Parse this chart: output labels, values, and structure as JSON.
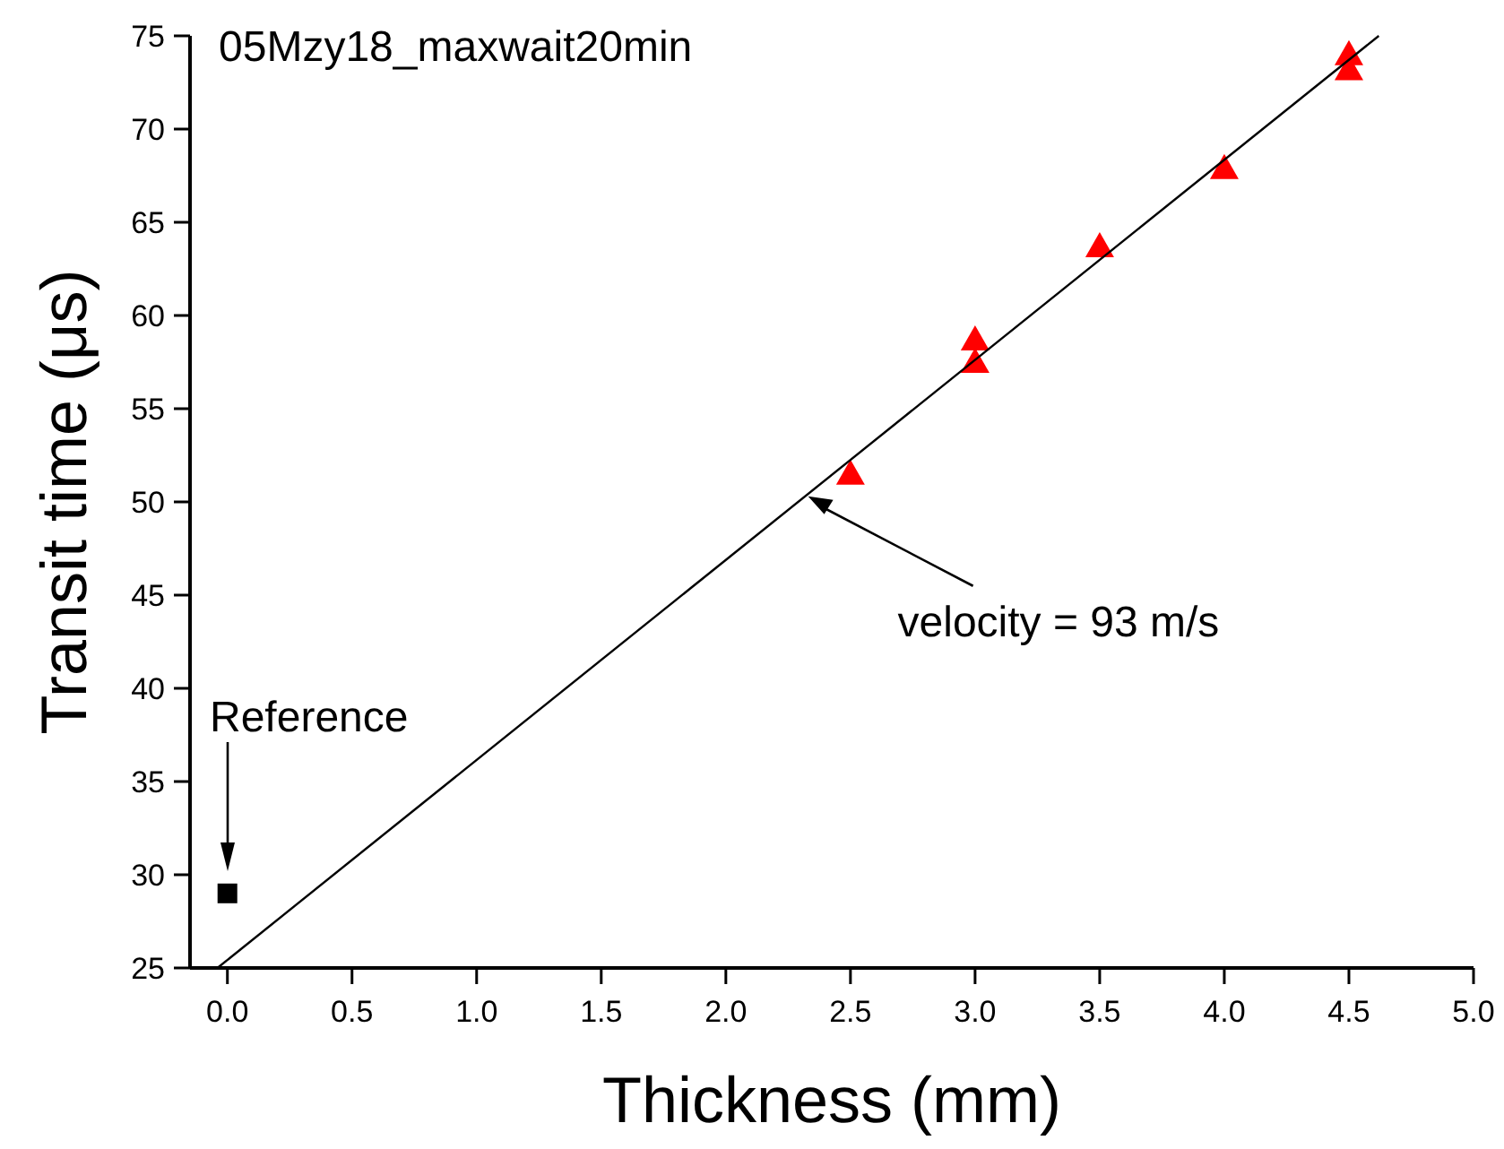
{
  "chart_data": {
    "type": "scatter",
    "title": "05Mzy18_maxwait20min",
    "xlabel": "Thickness (mm)",
    "ylabel": "Transit time (μs)",
    "xlim": [
      -0.15,
      5.0
    ],
    "ylim": [
      25,
      75
    ],
    "xticks": [
      {
        "value": 0,
        "label": "0.0"
      },
      {
        "value": 0.5,
        "label": "0.5"
      },
      {
        "value": 1,
        "label": "1.0"
      },
      {
        "value": 1.5,
        "label": "1.5"
      },
      {
        "value": 2,
        "label": "2.0"
      },
      {
        "value": 2.5,
        "label": "2.5"
      },
      {
        "value": 3,
        "label": "3.0"
      },
      {
        "value": 3.5,
        "label": "3.5"
      },
      {
        "value": 4,
        "label": "4.0"
      },
      {
        "value": 4.5,
        "label": "4.5"
      },
      {
        "value": 5,
        "label": "5.0"
      }
    ],
    "yticks": [
      25,
      30,
      35,
      40,
      45,
      50,
      55,
      60,
      65,
      70,
      75
    ],
    "series": [
      {
        "marker": "square",
        "color": "#000000",
        "x": [
          0
        ],
        "values": [
          29.0
        ]
      },
      {
        "marker": "triangle",
        "color": "#ff0000",
        "x": [
          2.5,
          3.0,
          3.0,
          3.5,
          4.0,
          4.5,
          4.5
        ],
        "values": [
          51.5,
          58.7,
          57.5,
          63.7,
          67.9,
          74.0,
          73.2
        ]
      },
      {
        "type": "line",
        "marker": "none",
        "color": "#000000",
        "x": [
          -0.04,
          4.62
        ],
        "values": [
          25,
          75
        ]
      }
    ],
    "annotations": [
      {
        "text": "velocity = 93 m/s",
        "x": 2.33,
        "y": 50.3
      },
      "Reference"
    ]
  }
}
